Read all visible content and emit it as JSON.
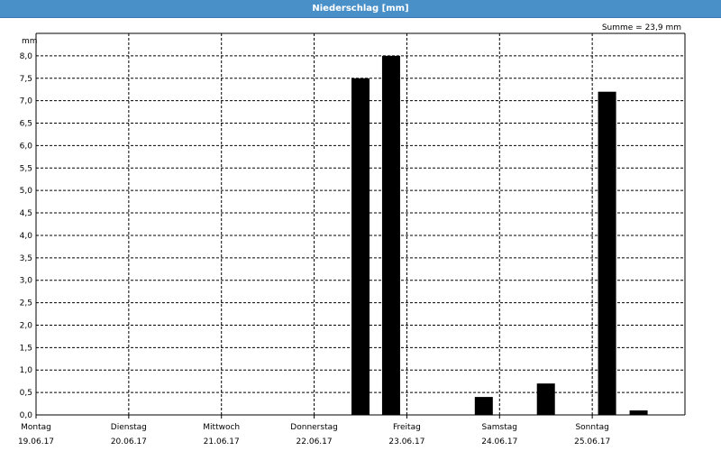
{
  "window": {
    "title": "Niederschlag [mm]"
  },
  "summary": "Summe = 23,9 mm",
  "chart_data": {
    "type": "bar",
    "title": "Niederschlag [mm]",
    "ylabel": "mm",
    "ylim": [
      0,
      8.5
    ],
    "yticks": [
      "0,0",
      "0,5",
      "1,0",
      "1,5",
      "2,0",
      "2,5",
      "3,0",
      "3,5",
      "4,0",
      "4,5",
      "5,0",
      "5,5",
      "6,0",
      "6,5",
      "7,0",
      "7,5",
      "8,0"
    ],
    "grid": true,
    "days": [
      {
        "name": "Montag",
        "date": "19.06.17"
      },
      {
        "name": "Dienstag",
        "date": "20.06.17"
      },
      {
        "name": "Mittwoch",
        "date": "21.06.17"
      },
      {
        "name": "Donnerstag",
        "date": "22.06.17"
      },
      {
        "name": "Freitag",
        "date": "23.06.17"
      },
      {
        "name": "Samstag",
        "date": "24.06.17"
      },
      {
        "name": "Sonntag",
        "date": "25.06.17"
      }
    ],
    "bars": [
      {
        "day_offset": 3.5,
        "value": 7.5
      },
      {
        "day_offset": 3.83,
        "value": 8.0
      },
      {
        "day_offset": 4.83,
        "value": 0.4
      },
      {
        "day_offset": 5.5,
        "value": 0.7
      },
      {
        "day_offset": 6.16,
        "value": 7.2
      },
      {
        "day_offset": 6.5,
        "value": 0.1
      }
    ],
    "colors": {
      "bar": "#000000",
      "grid": "#000000"
    }
  }
}
